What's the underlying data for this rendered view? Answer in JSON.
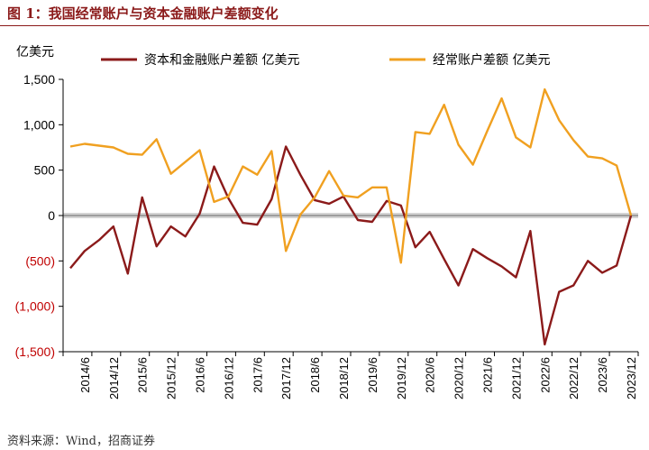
{
  "figure_title": "图 1：我国经常账户与资本金融账户差额变化",
  "source": "资料来源：Wind，招商证券",
  "colors": {
    "title": "#8b1a1a",
    "capital_series": "#8b1a1a",
    "current_series": "#f0a020",
    "negative_tick": "#c00000",
    "axis": "#000000",
    "zero_band": "#b0b0b0"
  },
  "chart_data": {
    "type": "line",
    "ylabel": "亿美元",
    "ylim": [
      -1500,
      1500
    ],
    "yticks": [
      1500,
      1000,
      500,
      0,
      -500,
      -1000,
      -1500
    ],
    "ytick_labels": [
      "1,500",
      "1,000",
      "500",
      "0",
      "(500)",
      "(1,000)",
      "(1,500)"
    ],
    "x_tick_labels": [
      "2014/6",
      "2014/12",
      "2015/6",
      "2015/12",
      "2016/6",
      "2016/12",
      "2017/6",
      "2017/12",
      "2018/6",
      "2018/12",
      "2019/6",
      "2019/12",
      "2020/6",
      "2020/12",
      "2021/6",
      "2021/12",
      "2022/6",
      "2022/12",
      "2023/6",
      "2023/12"
    ],
    "x_periods": [
      "2014Q1",
      "2014Q2",
      "2014Q3",
      "2014Q4",
      "2015Q1",
      "2015Q2",
      "2015Q3",
      "2015Q4",
      "2016Q1",
      "2016Q2",
      "2016Q3",
      "2016Q4",
      "2017Q1",
      "2017Q2",
      "2017Q3",
      "2017Q4",
      "2018Q1",
      "2018Q2",
      "2018Q3",
      "2018Q4",
      "2019Q1",
      "2019Q2",
      "2019Q3",
      "2019Q4",
      "2020Q1",
      "2020Q2",
      "2020Q3",
      "2020Q4",
      "2021Q1",
      "2021Q2",
      "2021Q3",
      "2021Q4",
      "2022Q1",
      "2022Q2",
      "2022Q3",
      "2022Q4",
      "2023Q1",
      "2023Q2",
      "2023Q3",
      "2023Q4"
    ],
    "legend_placement": "top",
    "grid": false,
    "series": [
      {
        "name": "资本和金融账户差额 亿美元",
        "color": "#8b1a1a",
        "values": [
          -580,
          -390,
          -270,
          -120,
          -640,
          200,
          -340,
          -120,
          -230,
          20,
          540,
          190,
          -80,
          -100,
          180,
          760,
          450,
          170,
          130,
          210,
          -50,
          -70,
          160,
          110,
          -350,
          -180,
          -480,
          -770,
          -370,
          -470,
          -560,
          -680,
          -170,
          -1420,
          -840,
          -770,
          -500,
          -630,
          -550,
          0
        ]
      },
      {
        "name": "经常账户差额 亿美元",
        "color": "#f0a020",
        "values": [
          760,
          790,
          770,
          750,
          680,
          670,
          840,
          460,
          590,
          720,
          150,
          210,
          540,
          450,
          710,
          -390,
          10,
          200,
          490,
          220,
          200,
          310,
          310,
          -520,
          920,
          900,
          1220,
          780,
          560,
          930,
          1290,
          860,
          750,
          1390,
          1050,
          830,
          650,
          630,
          550,
          0
        ]
      }
    ]
  }
}
